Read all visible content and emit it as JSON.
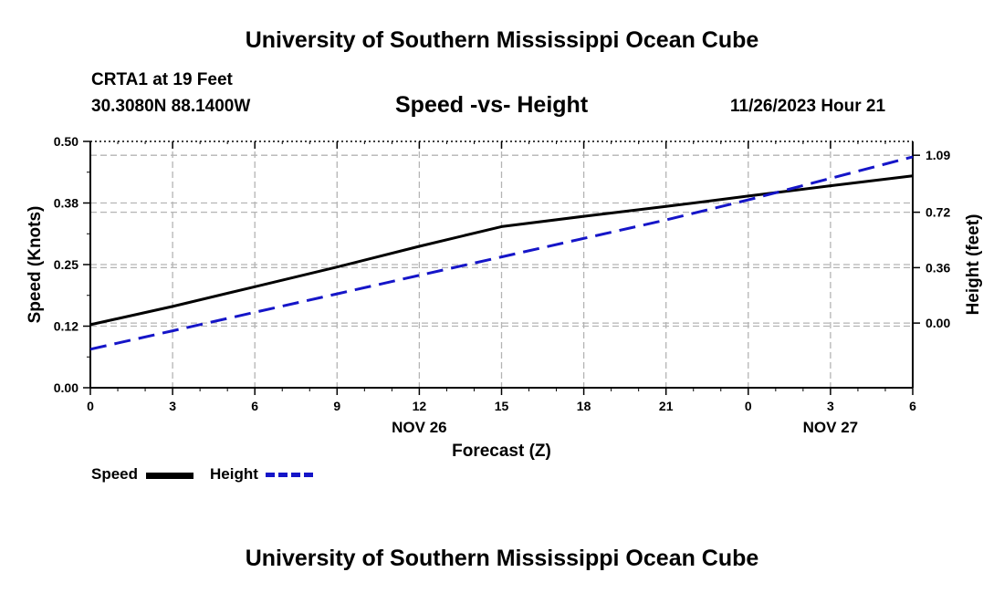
{
  "title": "University of Southern Mississippi Ocean Cube",
  "footer_title": "University of Southern Mississippi Ocean Cube",
  "station": "CRTA1 at 19 Feet",
  "coords": "30.3080N  88.1400W",
  "subtitle": "Speed -vs- Height",
  "datetime": "11/26/2023 Hour 21",
  "colors": {
    "speed": "#000000",
    "height": "#1515c8",
    "grid": "#b4b4b4"
  },
  "chart_data": {
    "type": "line",
    "title": "Speed -vs- Height",
    "xlabel": "Forecast (Z)",
    "ylabel": "Speed (Knots)",
    "y2label": "Height (feet)",
    "x_ticks": [
      "0",
      "3",
      "6",
      "9",
      "12",
      "15",
      "18",
      "21",
      "0",
      "3",
      "6"
    ],
    "x_range": [
      0,
      30
    ],
    "date_labels": [
      {
        "x": 12,
        "label": "NOV 26"
      },
      {
        "x": 27,
        "label": "NOV 27"
      }
    ],
    "y_left": {
      "min": 0,
      "max": 0.5,
      "ticks": [
        0,
        0.125,
        0.25,
        0.375,
        0.5
      ],
      "labels": [
        "0.00",
        "0.12",
        "0.25",
        "0.38",
        "0.50"
      ]
    },
    "y_right": {
      "min": -0.42,
      "max": 1.18,
      "ticks": [
        0,
        0.36,
        0.72,
        1.09
      ],
      "labels": [
        "0.00",
        "0.36",
        "0.72",
        "1.09"
      ]
    },
    "grid": true,
    "series": [
      {
        "name": "Speed",
        "axis": "left",
        "style": "solid",
        "x": [
          0,
          3,
          6,
          9,
          12,
          15,
          18,
          21,
          24,
          27,
          30
        ],
        "values": [
          0.128,
          0.165,
          0.205,
          0.245,
          0.287,
          0.327,
          0.348,
          0.368,
          0.389,
          0.41,
          0.43
        ]
      },
      {
        "name": "Height",
        "axis": "right",
        "style": "dashed",
        "x": [
          0,
          3,
          6,
          9,
          12,
          15,
          18,
          21,
          24,
          27,
          30
        ],
        "values": [
          -0.17,
          -0.05,
          0.07,
          0.19,
          0.31,
          0.43,
          0.55,
          0.67,
          0.8,
          0.94,
          1.08
        ]
      }
    ]
  }
}
